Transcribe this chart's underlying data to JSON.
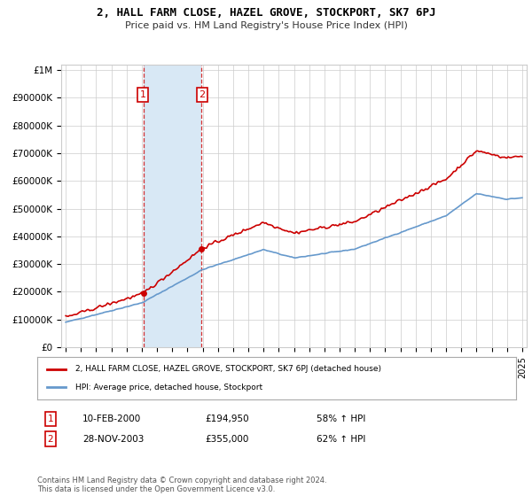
{
  "title": "2, HALL FARM CLOSE, HAZEL GROVE, STOCKPORT, SK7 6PJ",
  "subtitle": "Price paid vs. HM Land Registry's House Price Index (HPI)",
  "legend_label_red": "2, HALL FARM CLOSE, HAZEL GROVE, STOCKPORT, SK7 6PJ (detached house)",
  "legend_label_blue": "HPI: Average price, detached house, Stockport",
  "transaction1_date": "10-FEB-2000",
  "transaction1_price": "£194,950",
  "transaction1_hpi": "58% ↑ HPI",
  "transaction2_date": "28-NOV-2003",
  "transaction2_price": "£355,000",
  "transaction2_hpi": "62% ↑ HPI",
  "footnote": "Contains HM Land Registry data © Crown copyright and database right 2024.\nThis data is licensed under the Open Government Licence v3.0.",
  "red_color": "#cc0000",
  "blue_color": "#6699cc",
  "shaded_color": "#d8e8f5",
  "grid_color": "#cccccc",
  "background_color": "#ffffff",
  "ylim_min": 0,
  "ylim_max": 1000000,
  "ylabel_ticks": [
    0,
    100000,
    200000,
    300000,
    400000,
    500000,
    600000,
    700000,
    800000,
    900000,
    1000000
  ],
  "year_start": 1995,
  "year_end": 2025,
  "t1_year": 2000.11,
  "t2_year": 2003.91,
  "t1_price": 194950,
  "t2_price": 355000
}
